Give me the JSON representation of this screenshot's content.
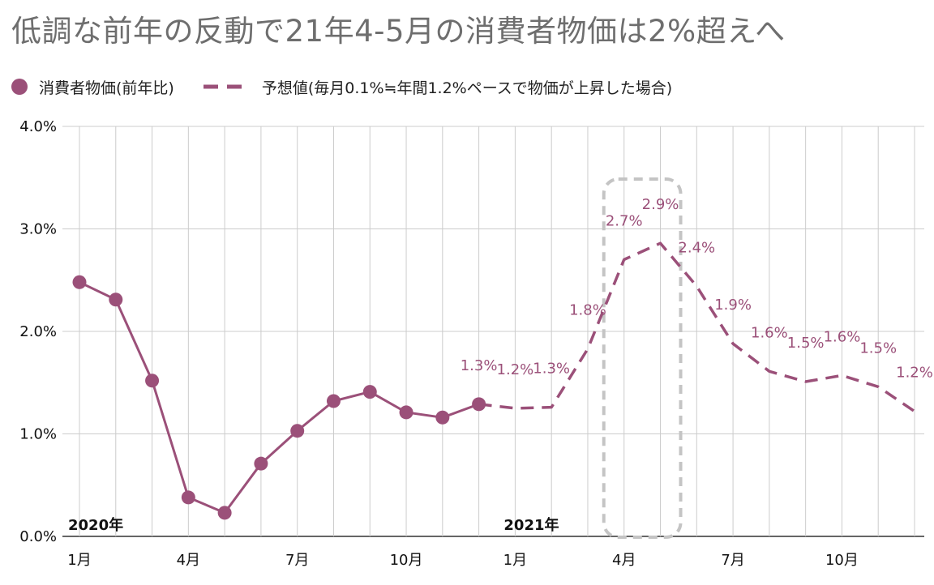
{
  "title": "低調な前年の反動で21年4-5月の消費者物価は2%超えへ",
  "colors": {
    "series": "#9b5079",
    "grid": "#cccccc",
    "highlight": "#c4c4c4"
  },
  "chart_data": {
    "type": "line",
    "title": "低調な前年の反動で21年4-5月の消費者物価は2%超えへ",
    "legend_position": "top-left",
    "grid": true,
    "y_range": [
      0.0,
      4.0
    ],
    "y_ticks": [
      "0.0%",
      "1.0%",
      "2.0%",
      "3.0%",
      "4.0%"
    ],
    "x_ticks": [
      {
        "month": 1,
        "label": "1月"
      },
      {
        "month": 4,
        "label": "4月"
      },
      {
        "month": 7,
        "label": "7月"
      },
      {
        "month": 10,
        "label": "10月"
      },
      {
        "month": 13,
        "label": "1月"
      },
      {
        "month": 16,
        "label": "4月"
      },
      {
        "month": 19,
        "label": "7月"
      },
      {
        "month": 22,
        "label": "10月"
      }
    ],
    "year_labels": [
      {
        "month": 1,
        "label": "2020年"
      },
      {
        "month": 13,
        "label": "2021年"
      }
    ],
    "x_range": [
      1,
      24
    ],
    "highlight_months": [
      16,
      17
    ],
    "series": [
      {
        "name": "消費者物価(前年比)",
        "style": "solid-markers",
        "points": [
          {
            "month": 1,
            "value": 2.48
          },
          {
            "month": 2,
            "value": 2.31
          },
          {
            "month": 3,
            "value": 1.52
          },
          {
            "month": 4,
            "value": 0.38
          },
          {
            "month": 5,
            "value": 0.23
          },
          {
            "month": 6,
            "value": 0.71
          },
          {
            "month": 7,
            "value": 1.03
          },
          {
            "month": 8,
            "value": 1.32
          },
          {
            "month": 9,
            "value": 1.41
          },
          {
            "month": 10,
            "value": 1.21
          },
          {
            "month": 11,
            "value": 1.16
          },
          {
            "month": 12,
            "value": 1.29
          }
        ]
      },
      {
        "name": "予想値(毎月0.1%≒年間1.2%ペースで物価が上昇した場合)",
        "style": "dashed",
        "points": [
          {
            "month": 12,
            "value": 1.29,
            "label": "1.3%"
          },
          {
            "month": 13,
            "value": 1.25,
            "label": "1.2%"
          },
          {
            "month": 14,
            "value": 1.26,
            "label": "1.3%"
          },
          {
            "month": 15,
            "value": 1.83,
            "label": "1.8%"
          },
          {
            "month": 16,
            "value": 2.7,
            "label": "2.7%"
          },
          {
            "month": 17,
            "value": 2.86,
            "label": "2.9%"
          },
          {
            "month": 18,
            "value": 2.44,
            "label": "2.4%"
          },
          {
            "month": 19,
            "value": 1.88,
            "label": "1.9%"
          },
          {
            "month": 20,
            "value": 1.61,
            "label": "1.6%"
          },
          {
            "month": 21,
            "value": 1.51,
            "label": "1.5%"
          },
          {
            "month": 22,
            "value": 1.57,
            "label": "1.6%"
          },
          {
            "month": 23,
            "value": 1.46,
            "label": "1.5%"
          },
          {
            "month": 24,
            "value": 1.22,
            "label": "1.2%"
          }
        ]
      }
    ]
  }
}
